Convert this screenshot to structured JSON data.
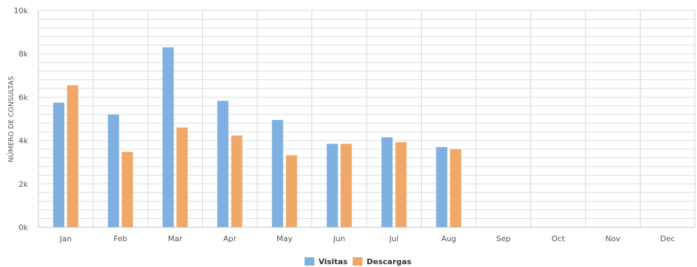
{
  "chart_data": {
    "type": "bar",
    "title": "",
    "xlabel": "",
    "ylabel": "NÚMERO DE CONSULTAS",
    "categories": [
      "Jan",
      "Feb",
      "Mar",
      "Apr",
      "May",
      "Jun",
      "Jul",
      "Aug",
      "Sep",
      "Oct",
      "Nov",
      "Dec"
    ],
    "ylim": [
      0,
      10000
    ],
    "yticks": [
      0,
      2000,
      4000,
      6000,
      8000,
      10000
    ],
    "ytick_labels": [
      "0k",
      "2k",
      "4k",
      "6k",
      "8k",
      "10k"
    ],
    "minor_grid_step": 400,
    "grid": true,
    "legend_position": "bottom-center",
    "series": [
      {
        "name": "Visitas",
        "color": "#7fb0e0",
        "values": [
          5750,
          5200,
          8300,
          5830,
          4950,
          3850,
          4150,
          3700,
          null,
          null,
          null,
          null
        ]
      },
      {
        "name": "Descargas",
        "color": "#f0a868",
        "values": [
          6550,
          3480,
          4600,
          4230,
          3320,
          3850,
          3920,
          3600,
          null,
          null,
          null,
          null
        ]
      }
    ]
  }
}
